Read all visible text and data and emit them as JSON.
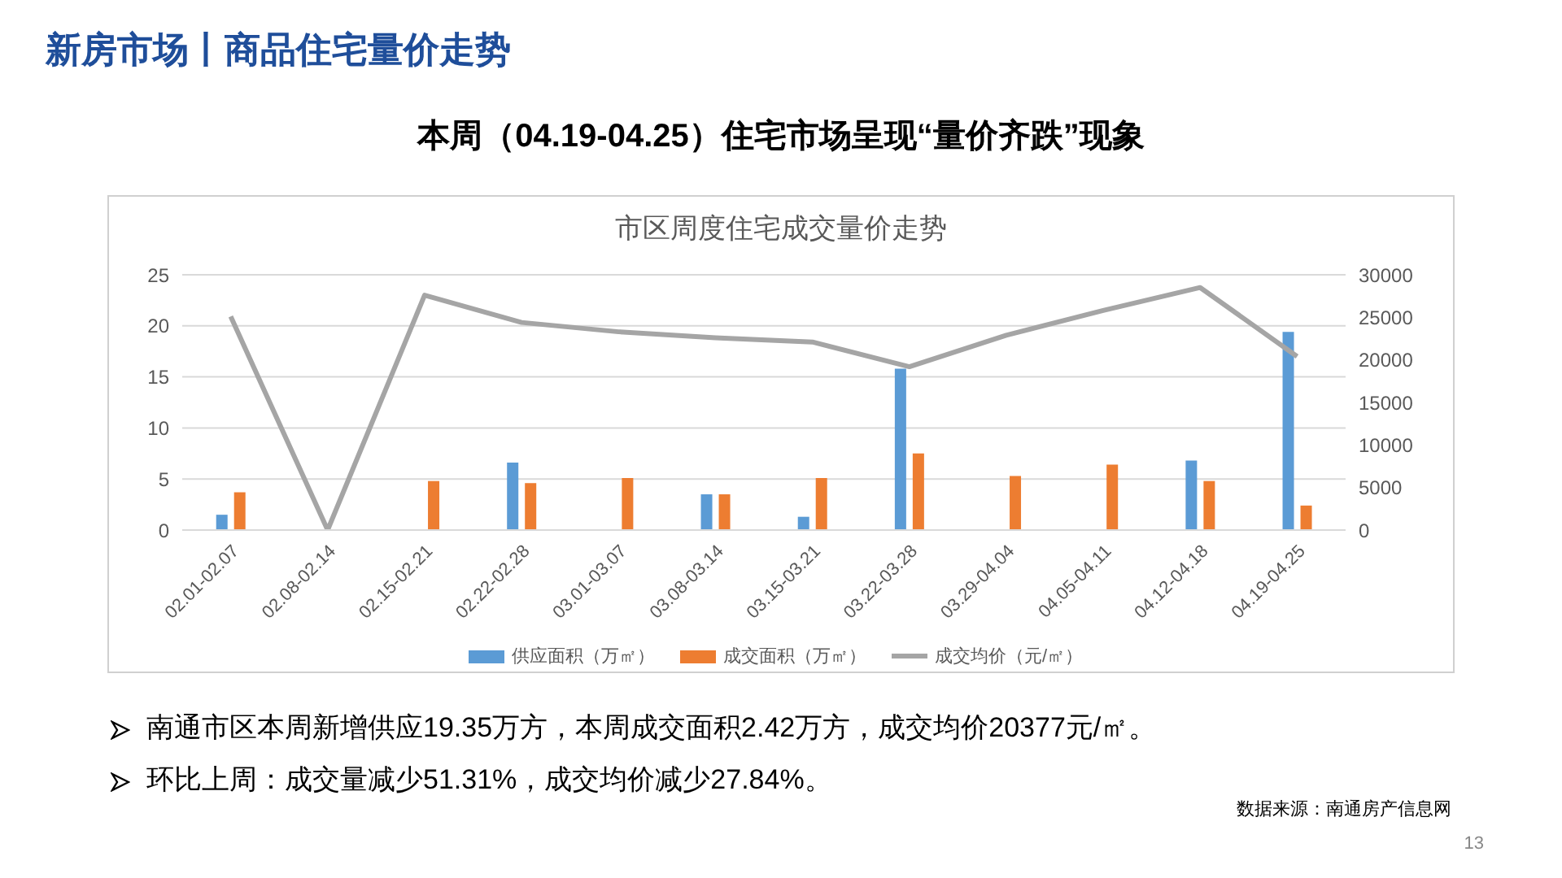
{
  "chart_data": {
    "type": "bar",
    "title": "市区周度住宅成交量价走势",
    "subtitle": "本周（04.19-04.25）住宅市场呈现“量价齐跌”现象",
    "categories": [
      "02.01-02.07",
      "02.08-02.14",
      "02.15-02.21",
      "02.22-02.28",
      "03.01-03.07",
      "03.08-03.14",
      "03.15-03.21",
      "03.22-03.28",
      "03.29-04.04",
      "04.05-04.11",
      "04.12-04.18",
      "04.19-04.25"
    ],
    "series": [
      {
        "name": "供应面积（万㎡）",
        "color": "#5b9bd5",
        "values": [
          1.5,
          null,
          null,
          6.6,
          null,
          3.5,
          1.3,
          15.8,
          null,
          null,
          6.8,
          19.4
        ]
      },
      {
        "name": "成交面积（万㎡）",
        "color": "#ed7d31",
        "values": [
          3.7,
          null,
          4.8,
          4.6,
          5.1,
          3.5,
          5.1,
          7.5,
          5.3,
          6.4,
          4.8,
          2.4
        ]
      },
      {
        "name": "成交均价（元/㎡）",
        "type": "line",
        "axis": "y2",
        "color": "#a5a5a5",
        "values": [
          25100,
          0,
          27600,
          24400,
          23300,
          22600,
          22100,
          19200,
          22900,
          25800,
          28500,
          20400
        ]
      }
    ],
    "ylim": [
      0,
      25
    ],
    "yticks": [
      0,
      5,
      10,
      15,
      20,
      25
    ],
    "y2lim": [
      0,
      30000
    ],
    "y2ticks": [
      0,
      5000,
      10000,
      15000,
      20000,
      25000,
      30000
    ],
    "grid": "y",
    "legend": "bottom",
    "marker": "none",
    "annotations": [
      "新房市场丨商品住宅量价走势",
      "南通市区本周新增供应19.35万方，本周成交面积2.42万方，成交均价20377元/㎡。",
      "环比上周：成交量减少51.31%，成交均价减少27.84%。",
      "数据来源：南通房产信息网",
      "13"
    ]
  }
}
